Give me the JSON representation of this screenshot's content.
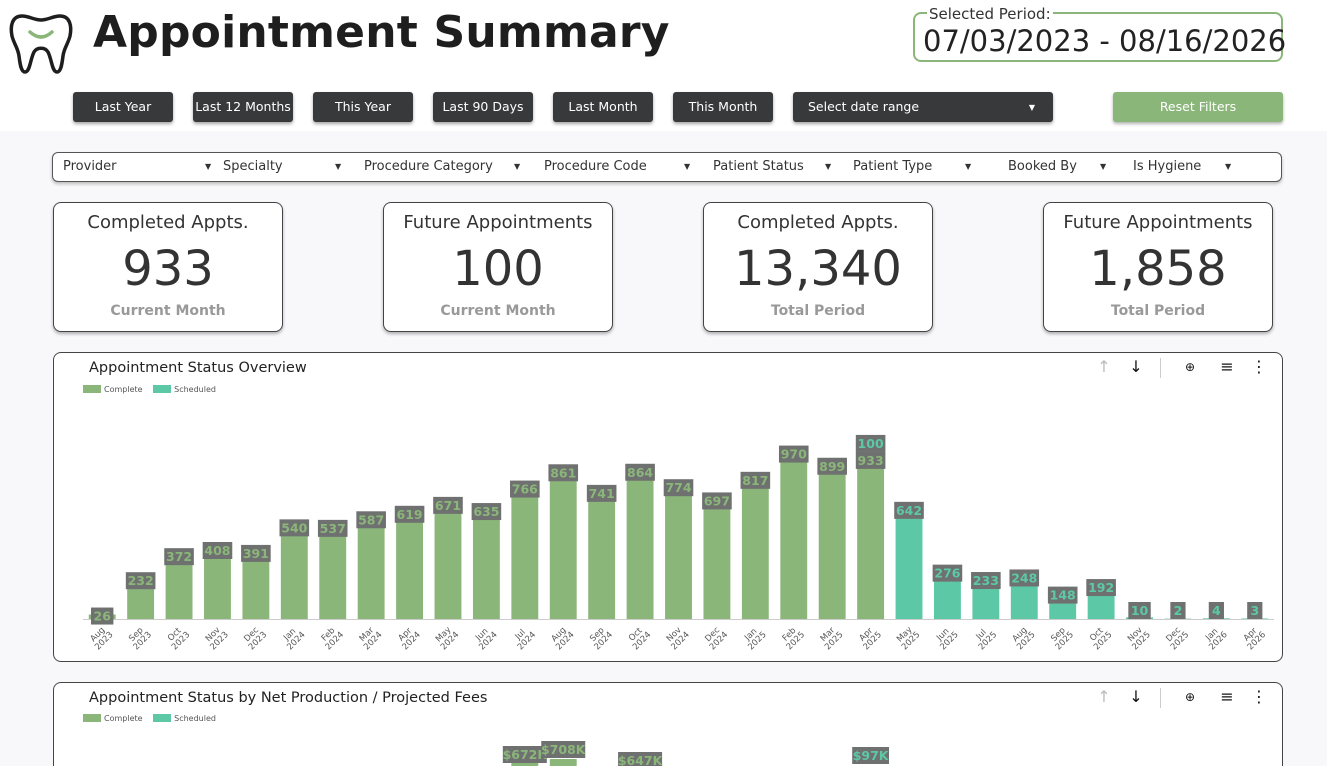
{
  "header": {
    "title": "Appointment Summary",
    "period_label": "Selected Period:",
    "period_value": "07/03/2023 - 08/16/2026"
  },
  "quick_filters": [
    "Last Year",
    "Last 12 Months",
    "This Year",
    "Last 90 Days",
    "Last Month",
    "This Month"
  ],
  "date_range_placeholder": "Select date range",
  "reset_label": "Reset Filters",
  "filters": [
    "Provider",
    "Specialty",
    "Procedure Category",
    "Procedure Code",
    "Patient Status",
    "Patient Type",
    "Booked By",
    "Is Hygiene"
  ],
  "kpis": [
    {
      "title": "Completed Appts.",
      "value": "933",
      "sub": "Current Month"
    },
    {
      "title": "Future Appointments",
      "value": "100",
      "sub": "Current Month"
    },
    {
      "title": "Completed Appts.",
      "value": "13,340",
      "sub": "Total Period"
    },
    {
      "title": "Future Appointments",
      "value": "1,858",
      "sub": "Total Period"
    }
  ],
  "colors": {
    "complete": "#8bb67a",
    "scheduled": "#5cc8a6",
    "accent": "#8bb67a",
    "dark_button": "#37393b"
  },
  "chart_data": [
    {
      "type": "bar",
      "title": "Appointment Status Overview",
      "legend": [
        "Complete",
        "Scheduled"
      ],
      "legend_position": "top-left",
      "categories": [
        "Aug 2023",
        "Sep 2023",
        "Oct 2023",
        "Nov 2023",
        "Dec 2023",
        "Jan 2024",
        "Feb 2024",
        "Mar 2024",
        "Apr 2024",
        "May 2024",
        "Jun 2024",
        "Jul 2024",
        "Aug 2024",
        "Sep 2024",
        "Oct 2024",
        "Nov 2024",
        "Dec 2024",
        "Jan 2025",
        "Feb 2025",
        "Mar 2025",
        "Apr 2025",
        "May 2025",
        "Jun 2025",
        "Jul 2025",
        "Aug 2025",
        "Sep 2025",
        "Oct 2025",
        "Nov 2025",
        "Dec 2025",
        "Jan 2026",
        "Apr 2026"
      ],
      "series": [
        {
          "name": "Complete",
          "values": [
            26,
            232,
            372,
            408,
            391,
            540,
            537,
            587,
            619,
            671,
            635,
            766,
            861,
            741,
            864,
            774,
            697,
            817,
            970,
            899,
            933,
            null,
            null,
            null,
            null,
            null,
            null,
            null,
            null,
            null,
            null
          ]
        },
        {
          "name": "Scheduled",
          "values": [
            null,
            null,
            null,
            null,
            null,
            null,
            null,
            null,
            null,
            null,
            null,
            null,
            null,
            null,
            null,
            null,
            null,
            null,
            null,
            null,
            100,
            642,
            276,
            233,
            248,
            148,
            192,
            10,
            2,
            4,
            3
          ]
        }
      ],
      "ylim": [
        0,
        1020
      ],
      "grid": false
    },
    {
      "type": "bar",
      "title": "Appointment Status by Net Production / Projected Fees",
      "legend": [
        "Complete",
        "Scheduled"
      ],
      "legend_position": "top-left",
      "visible_labels": [
        {
          "text": "$672K",
          "category": "Jul 2024"
        },
        {
          "text": "$708K",
          "category": "Aug 2024"
        },
        {
          "text": "$647K",
          "category": "Oct 2024"
        },
        {
          "text": "$97K",
          "category": "Apr 2025"
        }
      ]
    }
  ]
}
